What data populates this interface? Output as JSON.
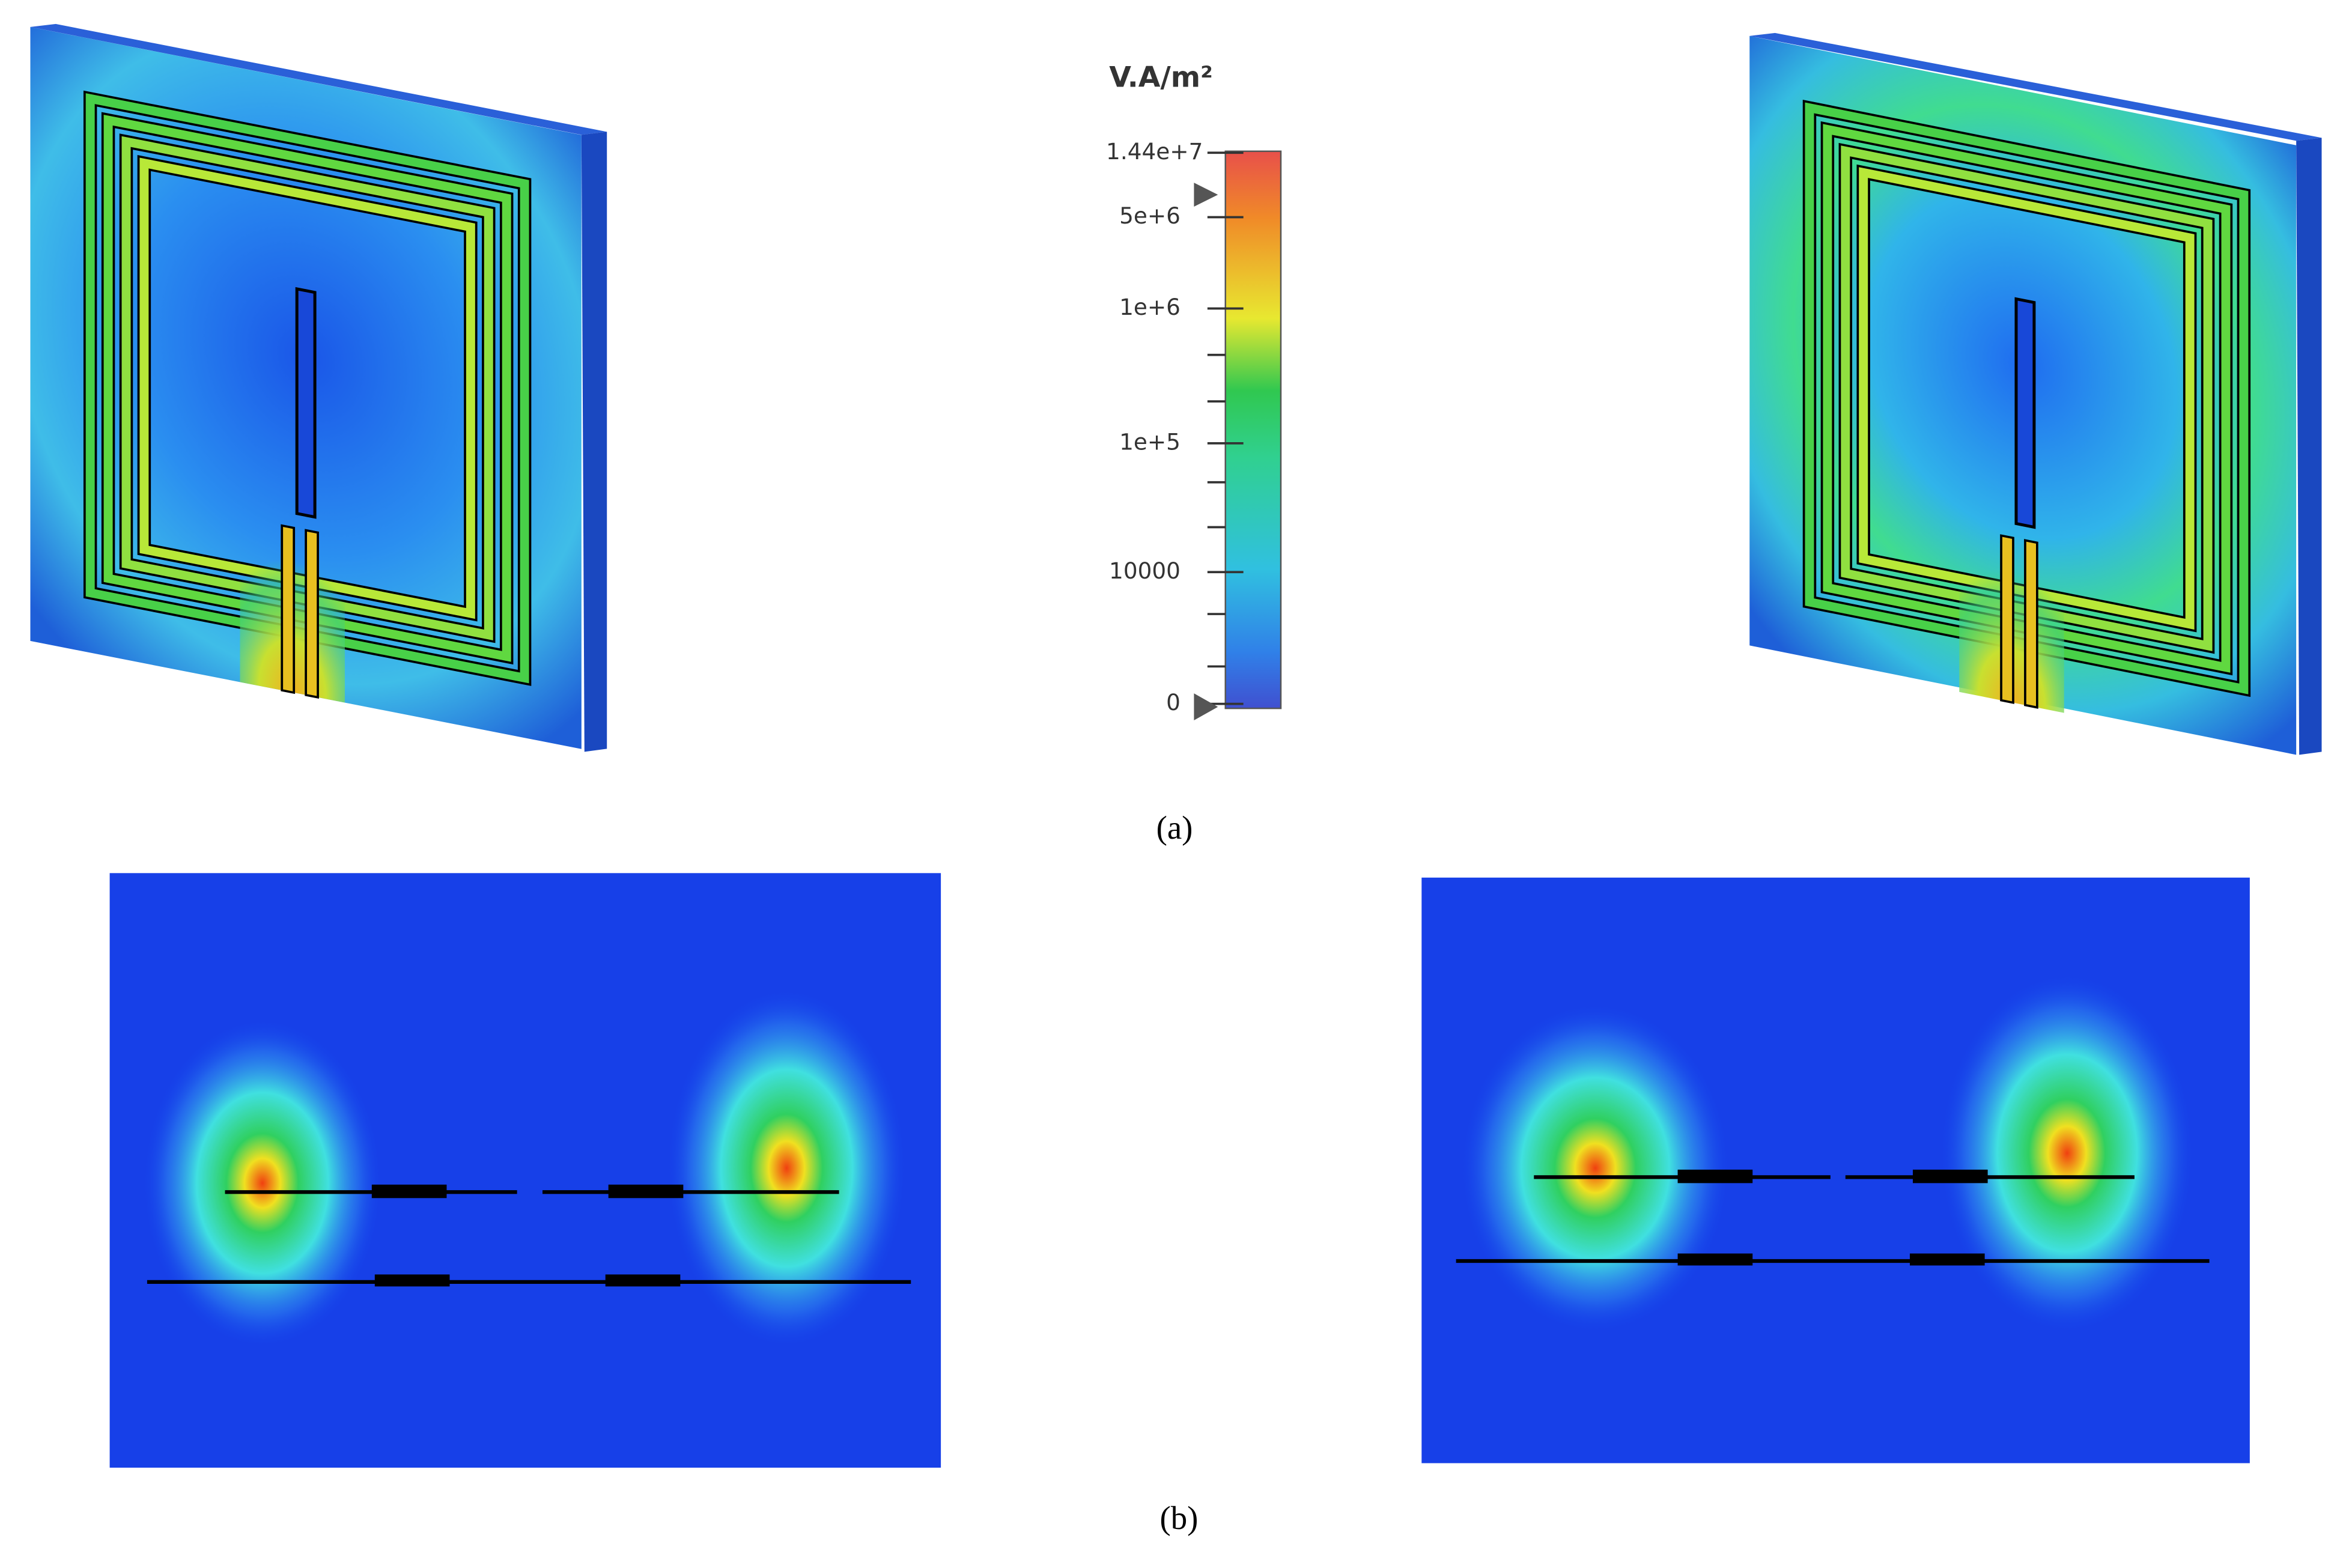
{
  "colorbar": {
    "unit": "V.A/m²",
    "ticks": [
      "1.44e+7",
      "5e+6",
      "1e+6",
      "1e+5",
      "10000",
      "0"
    ]
  },
  "captions": [
    "(a)",
    "(b)"
  ]
}
